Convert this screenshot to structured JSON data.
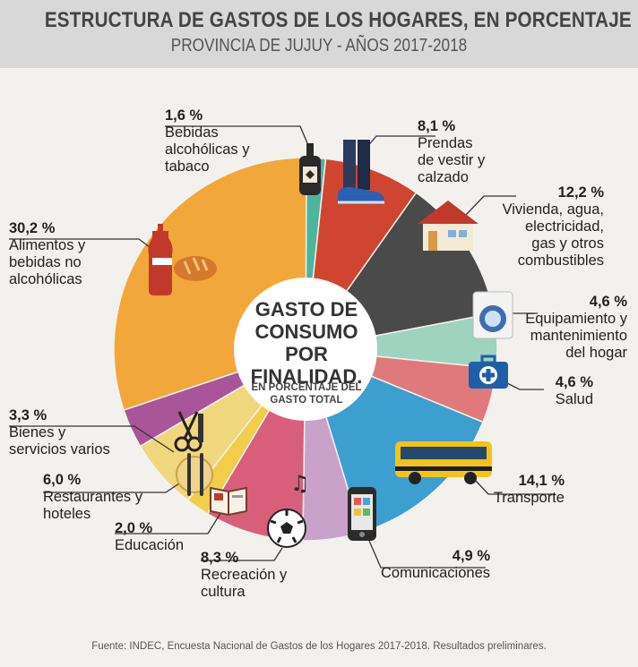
{
  "header": {
    "title": "ESTRUCTURA DE GASTOS DE LOS HOGARES, EN PORCENTAJE",
    "subtitle": "PROVINCIA DE JUJUY - AÑOS 2017-2018"
  },
  "center": {
    "title": "GASTO DE\nCONSUMO POR\nFINALIDAD.",
    "subtitle": "EN PORCENTAJE DEL\nGASTO TOTAL"
  },
  "chart_data": {
    "type": "pie",
    "variant": "donut",
    "slices": [
      {
        "label": "Bebidas\nalcohólicas y\ntabaco",
        "pct_text": "1,6 %",
        "value": 1.6,
        "color": "#4db59b",
        "icon": "wine-bottle-icon"
      },
      {
        "label": "Prendas\nde vestir y\ncalzado",
        "pct_text": "8,1 %",
        "value": 8.1,
        "color": "#d0452f",
        "icon": "clothes-shoe-icon"
      },
      {
        "label": "Vivienda, agua,\nelectricidad,\ngas y otros\ncombustibles",
        "pct_text": "12,2 %",
        "value": 12.2,
        "color": "#4a4a4a",
        "icon": "house-icon"
      },
      {
        "label": "Equipamiento y\nmantenimiento\ndel hogar",
        "pct_text": "4,6 %",
        "value": 4.6,
        "color": "#9ed3bf",
        "icon": "washing-machine-icon"
      },
      {
        "label": "Salud",
        "pct_text": "4,6 %",
        "value": 4.6,
        "color": "#e0797b",
        "icon": "first-aid-kit-icon"
      },
      {
        "label": "Transporte",
        "pct_text": "14,1 %",
        "value": 14.1,
        "color": "#3d9fd0",
        "icon": "bus-icon"
      },
      {
        "label": "Comunicaciones",
        "pct_text": "4,9 %",
        "value": 4.9,
        "color": "#c9a2c9",
        "icon": "mobile-phone-icon"
      },
      {
        "label": "Recreación y\ncultura",
        "pct_text": "8,3 %",
        "value": 8.3,
        "color": "#d85f79",
        "icon": "soccer-ball-icon"
      },
      {
        "label": "Educación",
        "pct_text": "2,0 %",
        "value": 2.0,
        "color": "#f1cd4a",
        "icon": "book-icon"
      },
      {
        "label": "Restaurantes y\nhoteles",
        "pct_text": "6,0 %",
        "value": 6.0,
        "color": "#f0d67d",
        "icon": "plate-cutlery-icon"
      },
      {
        "label": "Bienes y\nservicios varios",
        "pct_text": "3,3 %",
        "value": 3.3,
        "color": "#a8559a",
        "icon": "scissors-comb-icon"
      },
      {
        "label": "Alimentos y\nbebidas no\nalcohólicas",
        "pct_text": "30,2 %",
        "value": 30.2,
        "color": "#f2a73b",
        "icon": "soda-bread-icon"
      }
    ]
  },
  "source": "Fuente: INDEC, Encuesta Nacional de Gastos de los Hogares 2017-2018. Resultados preliminares."
}
